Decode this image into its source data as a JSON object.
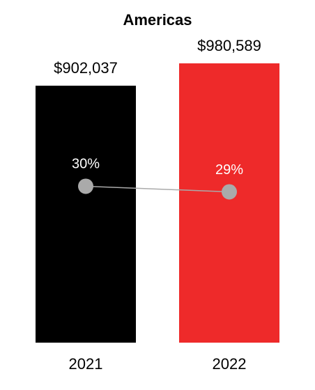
{
  "chart_data": {
    "type": "bar",
    "title": "Americas",
    "categories": [
      "2021",
      "2022"
    ],
    "series": [
      {
        "type": "bar",
        "colors": [
          "#000000",
          "#ee2a2a"
        ],
        "values": [
          902037,
          980589
        ],
        "value_labels": [
          "$902,037",
          "$980,589"
        ]
      },
      {
        "type": "line",
        "axis": "y2",
        "color": "#aaaaaa",
        "values": [
          30,
          29
        ],
        "value_labels": [
          "30%",
          "29%"
        ]
      }
    ],
    "ylim": [
      0,
      1000000
    ],
    "y2lim": [
      2,
      53
    ],
    "grid": false
  }
}
